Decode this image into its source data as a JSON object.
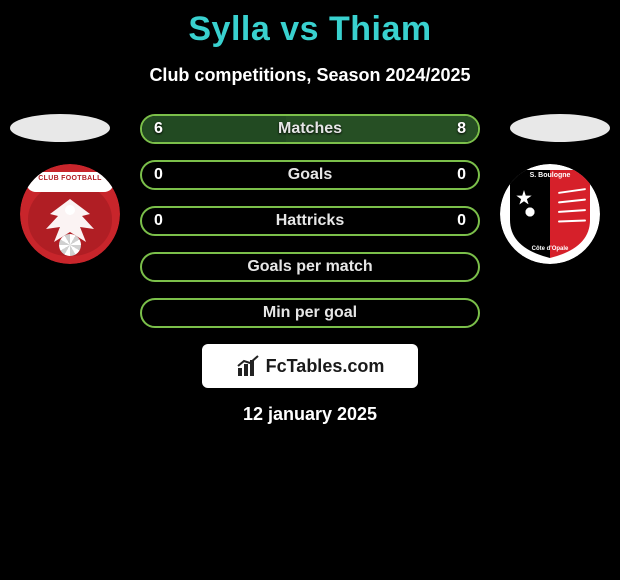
{
  "title": {
    "left": "Sylla",
    "vs": "vs",
    "right": "Thiam",
    "color": "#39d1cf"
  },
  "subtitle": "Club competitions, Season 2024/2025",
  "date": "12 january 2025",
  "brand": "FcTables.com",
  "teams": {
    "left": {
      "band_text": "CLUB FOOTBALL",
      "colors": {
        "primary": "#c8252b",
        "inner": "#b01e24"
      }
    },
    "right": {
      "top_text": "S. Boulogne",
      "bottom_text": "Côte d'Opale",
      "colors": {
        "left": "#000000",
        "right": "#d6202a"
      }
    }
  },
  "colors": {
    "bar_border": "#7bbf4a",
    "fill_left": "#224a22",
    "fill_right": "#264f24",
    "text": "#e6e6e6"
  },
  "bars": [
    {
      "label": "Matches",
      "left": "6",
      "right": "8",
      "left_pct": 43,
      "right_pct": 57,
      "show_vals": true
    },
    {
      "label": "Goals",
      "left": "0",
      "right": "0",
      "left_pct": 0,
      "right_pct": 0,
      "show_vals": true
    },
    {
      "label": "Hattricks",
      "left": "0",
      "right": "0",
      "left_pct": 0,
      "right_pct": 0,
      "show_vals": true
    },
    {
      "label": "Goals per match",
      "left": "",
      "right": "",
      "left_pct": 0,
      "right_pct": 0,
      "show_vals": false
    },
    {
      "label": "Min per goal",
      "left": "",
      "right": "",
      "left_pct": 0,
      "right_pct": 0,
      "show_vals": false
    }
  ]
}
